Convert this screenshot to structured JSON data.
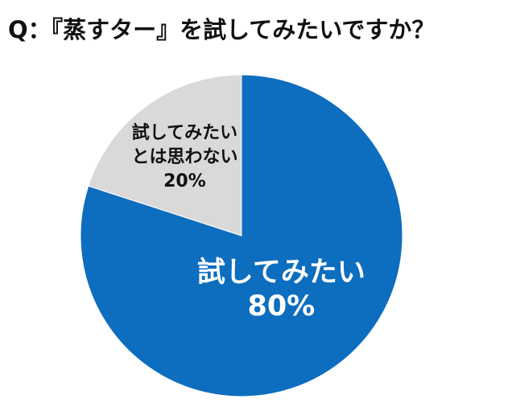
{
  "title": "Q：『蒸すター』を試してみたいですか？",
  "chart_data": {
    "type": "pie",
    "title": "Q：『蒸すター』を試してみたいですか？",
    "slices": [
      {
        "label_lines": [
          "試してみたい"
        ],
        "value": 80,
        "value_label": "80%",
        "color": "#0d6dbf",
        "label_color": "#ffffff"
      },
      {
        "label_lines": [
          "試してみたい",
          "とは思わない"
        ],
        "value": 20,
        "value_label": "20%",
        "color": "#d9d9d9",
        "label_color": "#111111"
      }
    ],
    "start_angle": "12 o'clock",
    "direction": "clockwise",
    "legend": "none"
  }
}
